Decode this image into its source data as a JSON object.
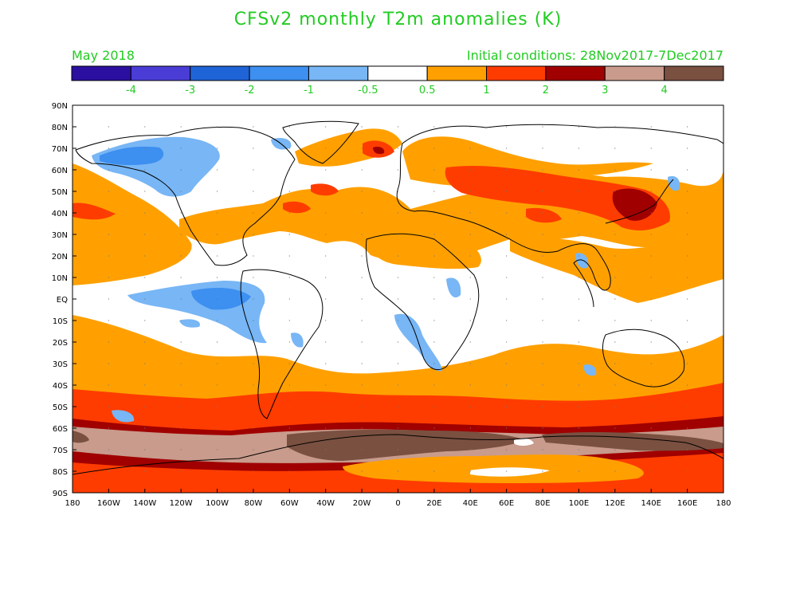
{
  "title": "CFSv2 monthly T2m anomalies (K)",
  "valid_month": "May 2018",
  "initial_conditions": "Initial conditions: 28Nov2017-7Dec2017",
  "colorbar": {
    "colors": [
      "#2a0fa0",
      "#4a3dd6",
      "#1f64d6",
      "#3d8ff0",
      "#78b6f5",
      "#ffffff",
      "#ffa000",
      "#ff3c00",
      "#a00000",
      "#c89b8c",
      "#7a5040"
    ],
    "labels": [
      "-4",
      "-3",
      "-2",
      "-1",
      "-0.5",
      "0.5",
      "1",
      "2",
      "3",
      "4"
    ]
  },
  "axes": {
    "lat_labels": [
      "90N",
      "80N",
      "70N",
      "60N",
      "50N",
      "40N",
      "30N",
      "20N",
      "10N",
      "EQ",
      "10S",
      "20S",
      "30S",
      "40S",
      "50S",
      "60S",
      "70S",
      "80S",
      "90S"
    ],
    "lon_labels": [
      "180",
      "160W",
      "140W",
      "120W",
      "100W",
      "80W",
      "60W",
      "40W",
      "20W",
      "0",
      "20E",
      "40E",
      "60E",
      "80E",
      "100E",
      "120E",
      "140E",
      "160E",
      "180"
    ]
  },
  "colors": {
    "text": "#22cc22",
    "axis": "#000000",
    "coast": "#000000"
  }
}
